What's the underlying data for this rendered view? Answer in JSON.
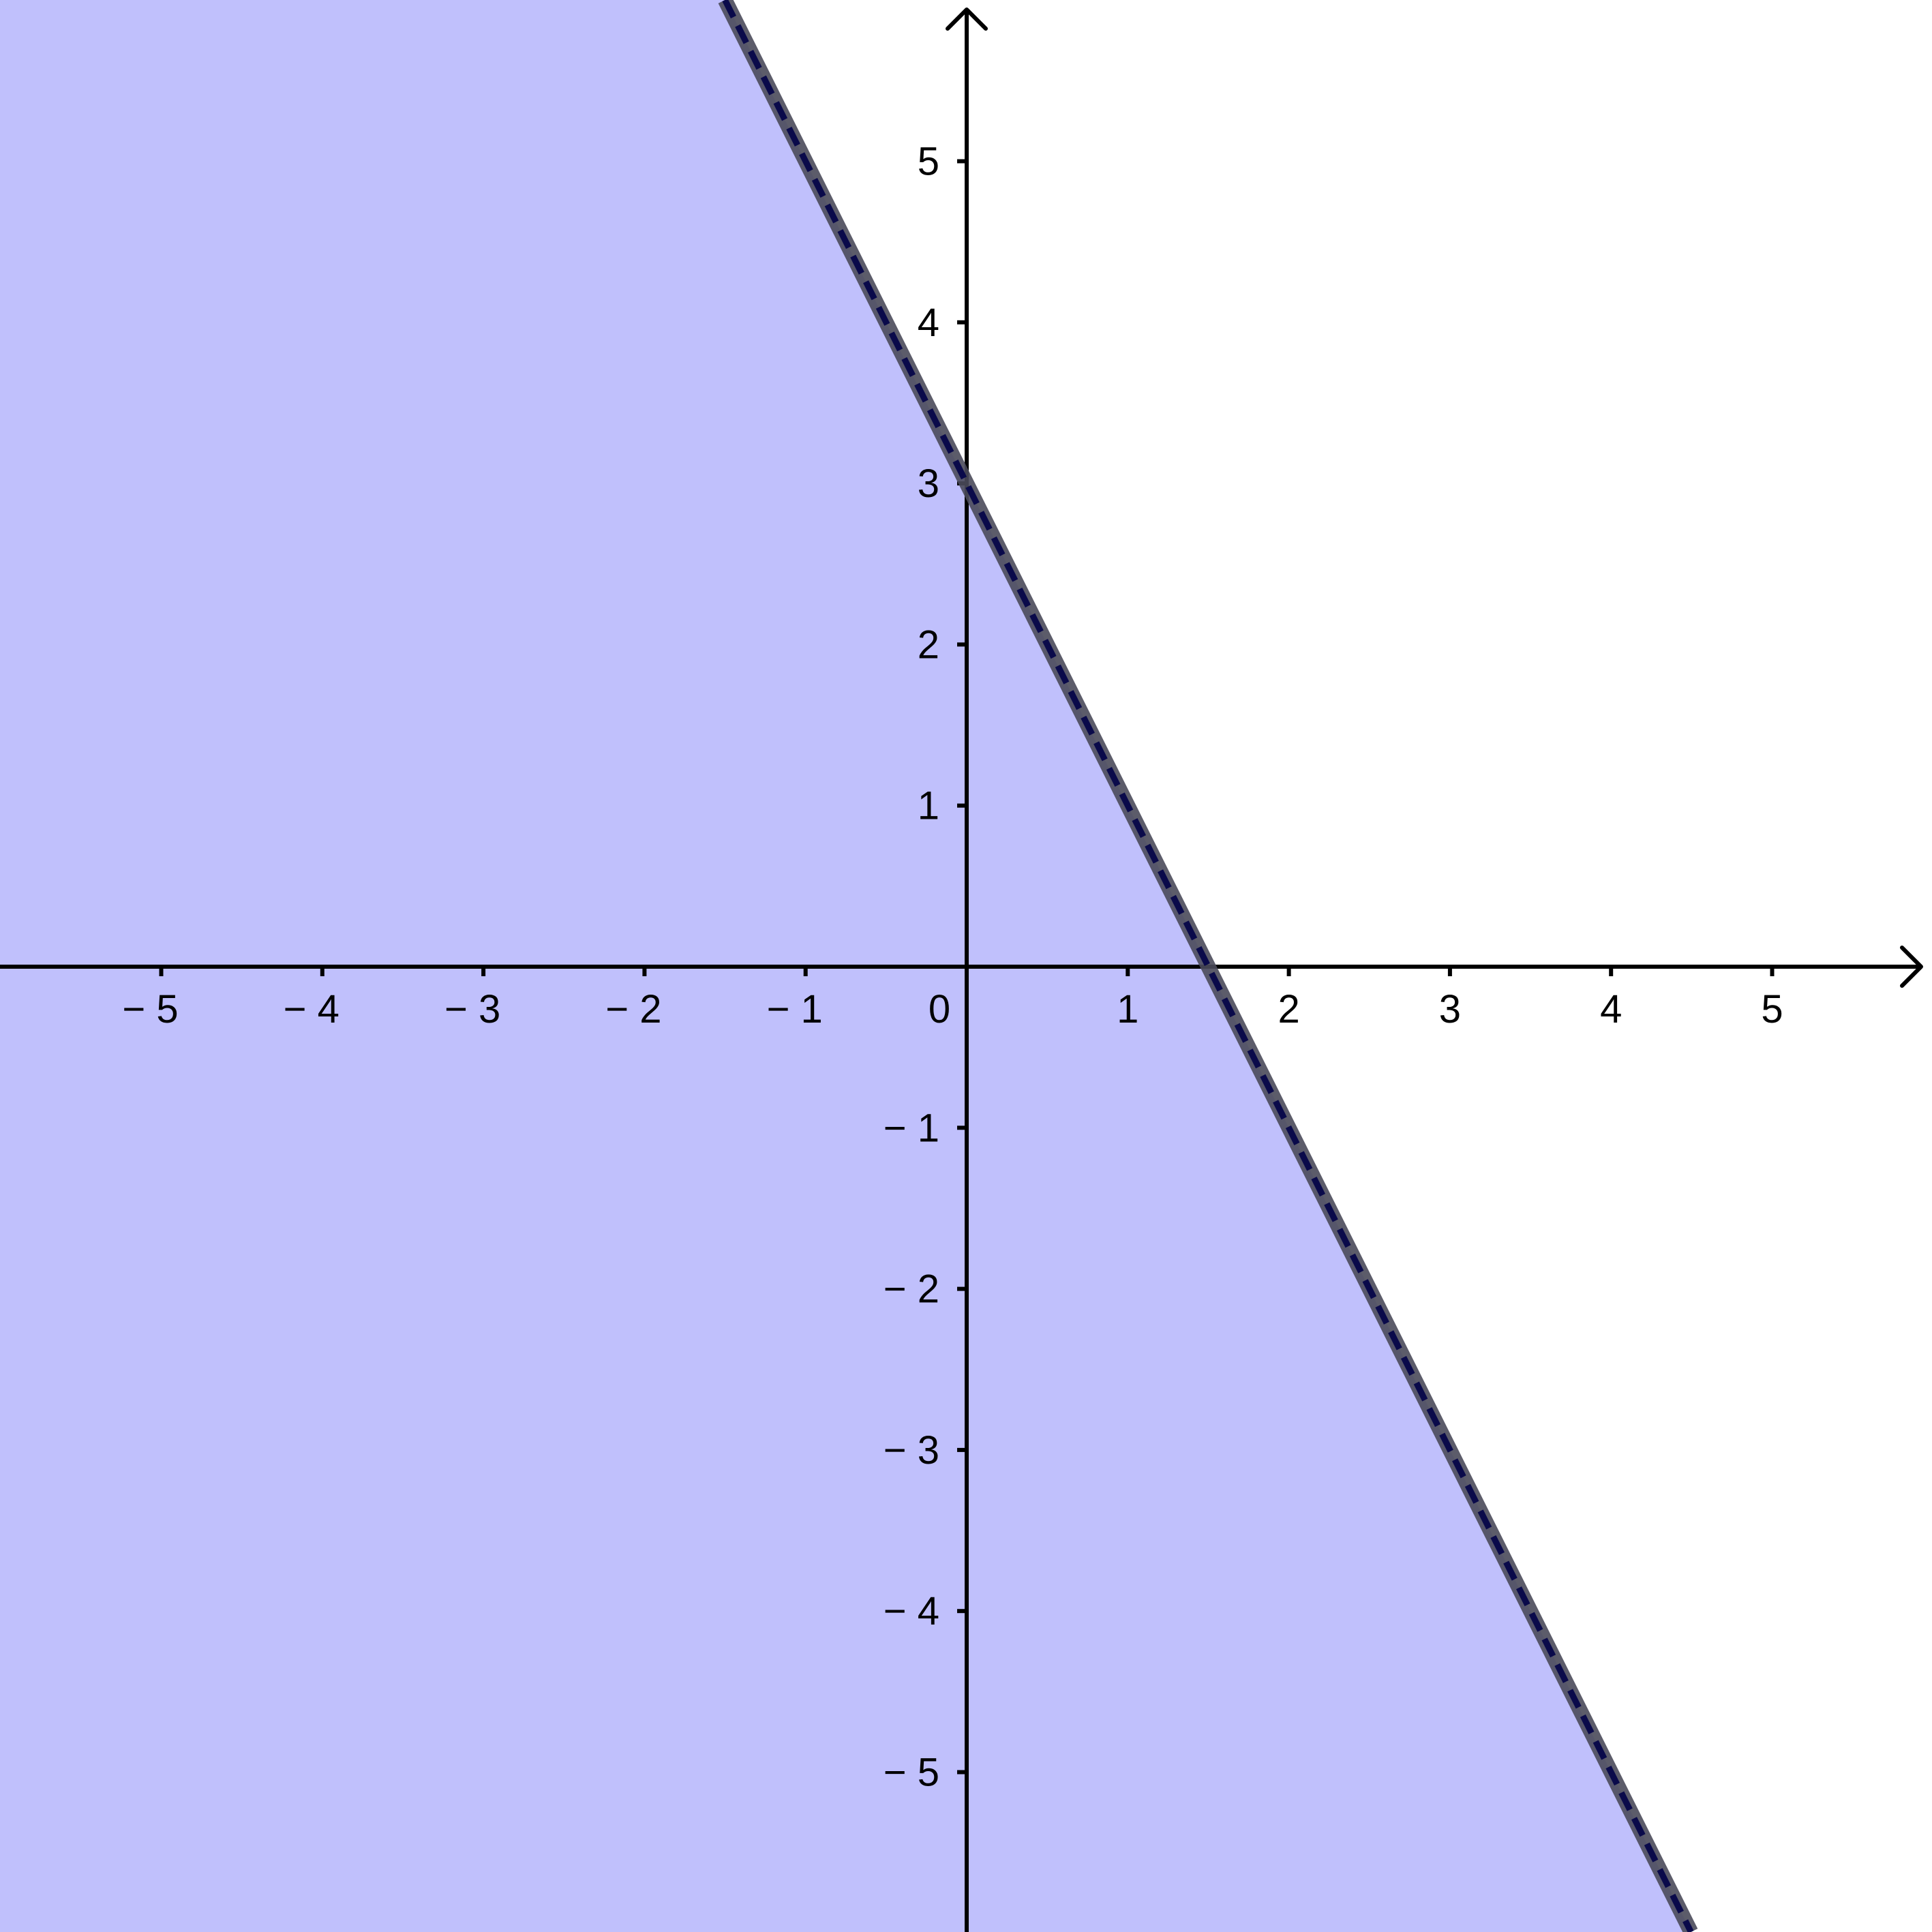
{
  "chart_data": {
    "type": "line",
    "title": "",
    "xlabel": "",
    "ylabel": "",
    "xlim": [
      -6,
      6
    ],
    "ylim": [
      -6,
      6
    ],
    "grid": false,
    "line": {
      "slope": -2,
      "intercept": 3,
      "style": "dashed",
      "color": "#0a0a4a",
      "halo_color": "#4a4a5a"
    },
    "shaded_region": {
      "inequality": "y < -2x + 3",
      "side": "below",
      "color": "#c0c0fc"
    },
    "x_tick_values": [
      -5,
      -4,
      -3,
      -2,
      -1,
      1,
      2,
      3,
      4,
      5
    ],
    "x_tick_labels": [
      "− 5",
      "− 4",
      "− 3",
      "− 2",
      "− 1",
      "1",
      "2",
      "3",
      "4",
      "5"
    ],
    "y_tick_values": [
      5,
      4,
      3,
      2,
      1,
      -1,
      -2,
      -3,
      -4,
      -5
    ],
    "y_tick_labels": [
      "5",
      "4",
      "3",
      "2",
      "1",
      "− 1",
      "− 2",
      "− 3",
      "− 4",
      "− 5"
    ],
    "origin_label": "0",
    "axis_color": "#000000"
  }
}
